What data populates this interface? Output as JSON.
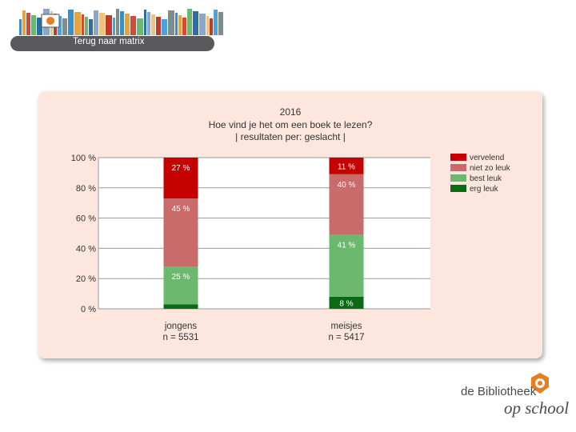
{
  "nav": {
    "back_label": "Terug naar matrix"
  },
  "logo": {
    "line1": "de Bibliotheek",
    "line2": "op school"
  },
  "chart_data": {
    "type": "bar",
    "stacked": true,
    "title": "2016",
    "subtitle": "Hoe vind je het om een boek te lezen?",
    "subtitle2": "| resultaten per: geslacht |",
    "categories": [
      "jongens",
      "meisjes"
    ],
    "category_n": [
      "n = 5531",
      "n = 5417"
    ],
    "ylim": [
      0,
      100
    ],
    "yticks": [
      "0 %",
      "20 %",
      "40 %",
      "60 %",
      "80 %",
      "100 %"
    ],
    "grid": true,
    "legend_position": "top-right",
    "series": [
      {
        "name": "erg leuk",
        "color": "#0b6b12",
        "values": [
          3,
          8
        ],
        "labels": [
          "",
          "8 %"
        ]
      },
      {
        "name": "best leuk",
        "color": "#6cb86e",
        "values": [
          25,
          41
        ],
        "labels": [
          "25 %",
          "41 %"
        ]
      },
      {
        "name": "niet zo leuk",
        "color": "#c96b6b",
        "values": [
          45,
          40
        ],
        "labels": [
          "45 %",
          "40 %"
        ]
      },
      {
        "name": "vervelend",
        "color": "#c40000",
        "values": [
          27,
          11
        ],
        "labels": [
          "27 %",
          "11 %"
        ]
      }
    ]
  }
}
